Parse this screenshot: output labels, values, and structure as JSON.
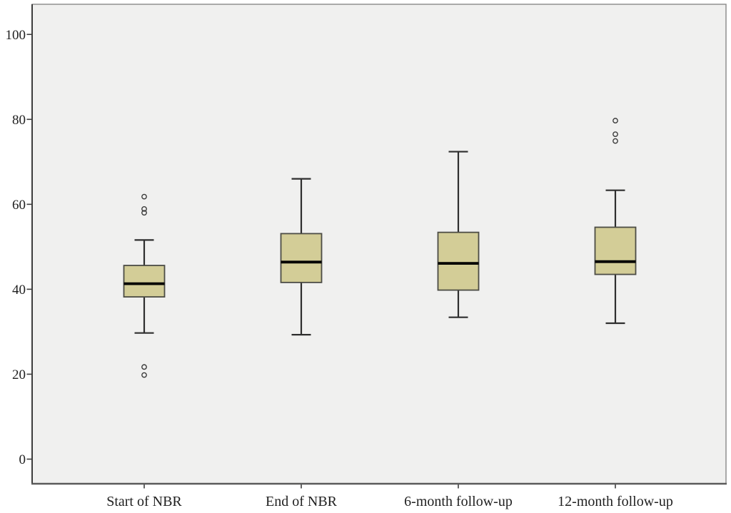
{
  "chart_data": {
    "type": "boxplot",
    "title": "",
    "xlabel": "",
    "ylabel": "",
    "grid": false,
    "legend": false,
    "ylim": [
      0,
      100
    ],
    "yticks": [
      0,
      20,
      40,
      60,
      80,
      100
    ],
    "categories": [
      "Start of NBR",
      "End of NBR",
      "6-month follow-up",
      "12-month follow-up"
    ],
    "series": [
      {
        "category": "Start of NBR",
        "whisker_low": 29.7,
        "q1": 38.2,
        "median": 41.3,
        "q3": 45.6,
        "whisker_high": 51.6,
        "outliers": [
          61.8,
          58.9,
          58.0,
          21.7,
          19.8
        ]
      },
      {
        "category": "End of NBR",
        "whisker_low": 29.3,
        "q1": 41.6,
        "median": 46.4,
        "q3": 53.1,
        "whisker_high": 66.0,
        "outliers": []
      },
      {
        "category": "6-month follow-up",
        "whisker_low": 33.4,
        "q1": 39.8,
        "median": 46.1,
        "q3": 53.4,
        "whisker_high": 72.4,
        "outliers": []
      },
      {
        "category": "12-month follow-up",
        "whisker_low": 32.0,
        "q1": 43.5,
        "median": 46.5,
        "q3": 54.6,
        "whisker_high": 63.3,
        "outliers": [
          79.7,
          76.5,
          74.9
        ]
      }
    ],
    "colors": {
      "box_fill": "#d3cd97",
      "box_border": "#4c4c45",
      "median": "#000000",
      "whisker": "#2e2e2e",
      "outlier": "#3a3a3a",
      "plot_background": "#f0f0ef",
      "axis_line": "#3d3d3d",
      "frame": "#8f8f8f",
      "tick_label": "#1f1f1f"
    }
  }
}
